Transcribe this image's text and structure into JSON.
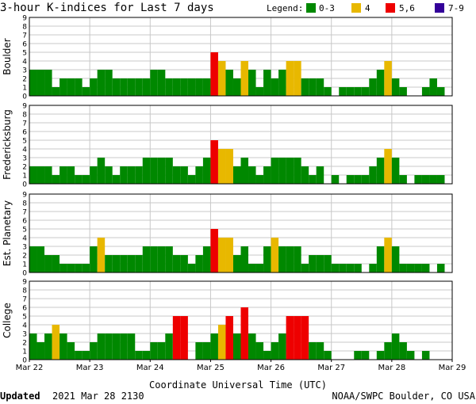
{
  "chart_data": {
    "type": "bar",
    "title": "3-hour K-indices for Last 7 days",
    "legend": {
      "label": "Legend:",
      "items": [
        {
          "label": "0-3",
          "color": "#008800"
        },
        {
          "label": "4",
          "color": "#e8b800"
        },
        {
          "label": "5,6",
          "color": "#ee0000"
        },
        {
          "label": "7-9",
          "color": "#330099"
        }
      ]
    },
    "ylim": [
      0,
      9
    ],
    "yticks": [
      0,
      1,
      2,
      3,
      4,
      5,
      6,
      7,
      8,
      9
    ],
    "x_tick_labels": [
      "Mar 22",
      "Mar 23",
      "Mar 24",
      "Mar 25",
      "Mar 26",
      "Mar 27",
      "Mar 28",
      "Mar 29"
    ],
    "xlabel": "Coordinate Universal Time (UTC)",
    "intervals_per_day": 8,
    "series": [
      {
        "name": "Boulder",
        "values": [
          3,
          3,
          3,
          1,
          2,
          2,
          2,
          1,
          2,
          3,
          3,
          2,
          2,
          2,
          2,
          2,
          3,
          3,
          2,
          2,
          2,
          2,
          2,
          2,
          5,
          4,
          3,
          2,
          4,
          3,
          1,
          3,
          2,
          3,
          4,
          4,
          2,
          2,
          2,
          1,
          0,
          1,
          1,
          1,
          1,
          2,
          3,
          4,
          2,
          1,
          0,
          0,
          1,
          2,
          1,
          0
        ]
      },
      {
        "name": "Fredericksburg",
        "values": [
          2,
          2,
          2,
          1,
          2,
          2,
          1,
          1,
          2,
          3,
          2,
          1,
          2,
          2,
          2,
          3,
          3,
          3,
          3,
          2,
          2,
          1,
          2,
          3,
          5,
          4,
          4,
          2,
          3,
          2,
          1,
          2,
          3,
          3,
          3,
          3,
          2,
          1,
          2,
          0,
          1,
          0,
          1,
          1,
          1,
          2,
          3,
          4,
          3,
          1,
          0,
          1,
          1,
          1,
          1,
          0
        ]
      },
      {
        "name": "Est. Planetary",
        "values": [
          3,
          3,
          2,
          2,
          1,
          1,
          1,
          1,
          3,
          4,
          2,
          2,
          2,
          2,
          2,
          3,
          3,
          3,
          3,
          2,
          2,
          1,
          2,
          3,
          5,
          4,
          4,
          2,
          3,
          1,
          1,
          3,
          4,
          3,
          3,
          3,
          1,
          2,
          2,
          2,
          1,
          1,
          1,
          1,
          0,
          1,
          3,
          4,
          3,
          1,
          1,
          1,
          1,
          0,
          1,
          0
        ]
      },
      {
        "name": "College",
        "values": [
          3,
          2,
          3,
          4,
          3,
          2,
          1,
          1,
          2,
          3,
          3,
          3,
          3,
          3,
          1,
          1,
          2,
          2,
          3,
          5,
          5,
          0,
          2,
          2,
          3,
          4,
          5,
          3,
          6,
          3,
          2,
          1,
          2,
          3,
          5,
          5,
          5,
          2,
          2,
          1,
          0,
          0,
          0,
          1,
          1,
          0,
          1,
          2,
          3,
          2,
          1,
          0,
          1,
          0,
          0,
          0
        ]
      }
    ]
  },
  "footer": {
    "updated_label": "Updated",
    "updated_value": "2021 Mar 28 2130",
    "source": "NOAA/SWPC Boulder, CO USA"
  }
}
